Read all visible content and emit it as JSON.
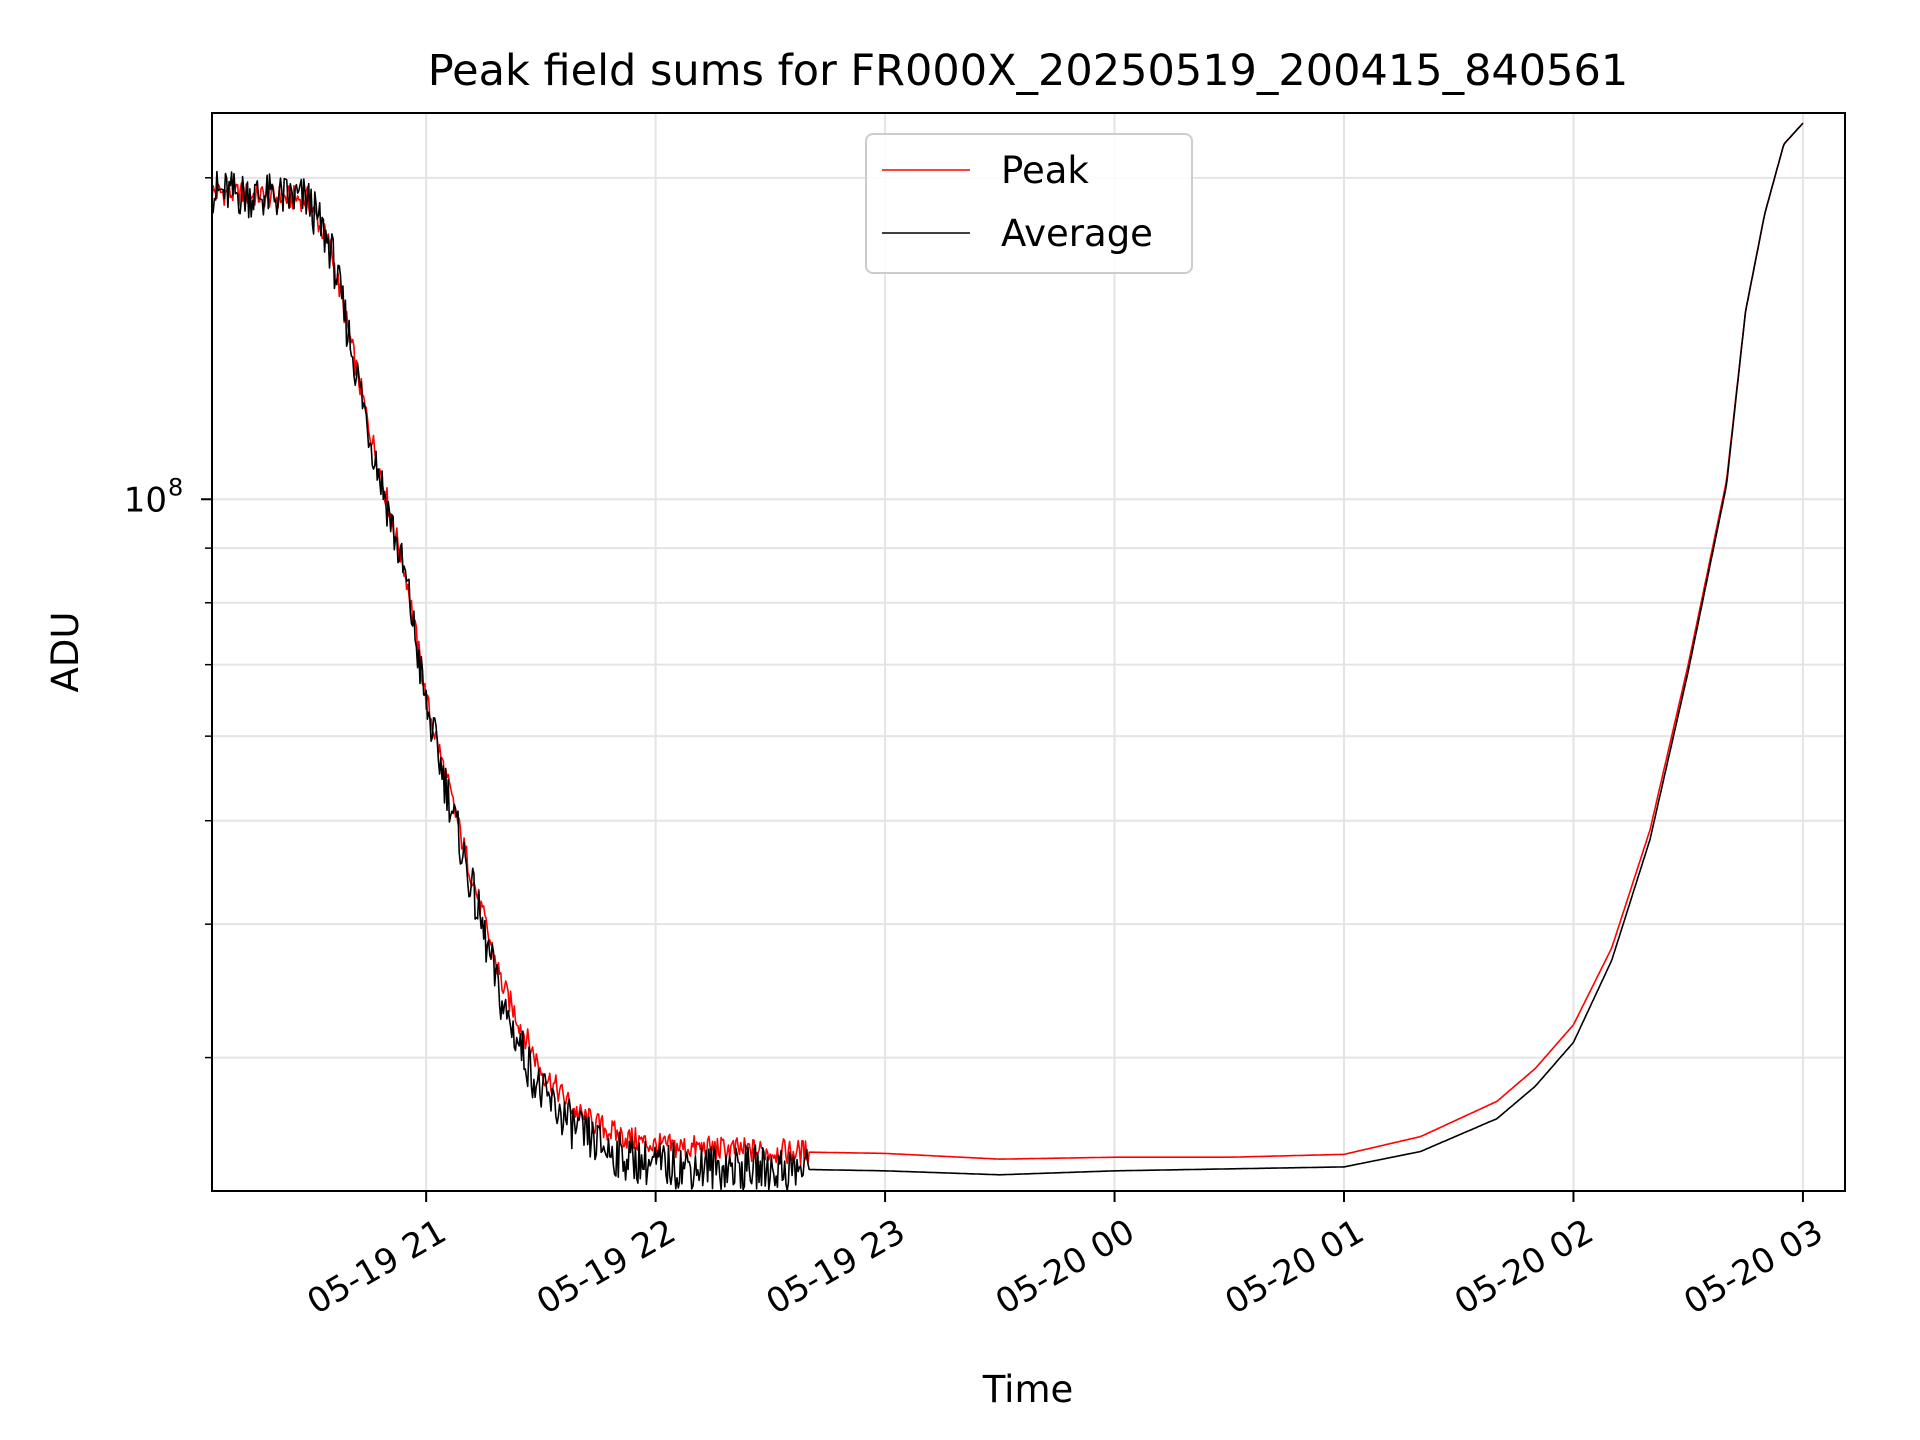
{
  "chart_data": {
    "type": "line",
    "title": "Peak field sums for FR000X_20250519_200415_840561",
    "xlabel": "Time",
    "ylabel": "ADU",
    "y_scale": "log",
    "x_unit": "time",
    "xlim": [
      "05-19 20:04",
      "05-20 03:11"
    ],
    "ylim": [
      22500000,
      230000000
    ],
    "x_ticks": [
      "05-19 21",
      "05-19 22",
      "05-19 23",
      "05-20 00",
      "05-20 01",
      "05-20 02",
      "05-20 03"
    ],
    "x_tick_times": [
      "05-19 21:00",
      "05-19 22:00",
      "05-19 23:00",
      "05-20 00:00",
      "05-20 01:00",
      "05-20 02:00",
      "05-20 03:00"
    ],
    "y_ticks": [
      {
        "label": "10",
        "sup": "8",
        "value": 100000000
      }
    ],
    "grid": true,
    "legend_position": "top-center",
    "legend": [
      {
        "label": "Peak",
        "color": "#ff0000"
      },
      {
        "label": "Average",
        "color": "#000000"
      }
    ],
    "series": [
      {
        "name": "Peak",
        "color": "#ff0000",
        "x": [
          "05-19 20:04",
          "05-19 20:20",
          "05-19 20:29",
          "05-19 20:35",
          "05-19 20:45",
          "05-19 20:55",
          "05-19 21:00",
          "05-19 21:10",
          "05-19 21:20",
          "05-19 21:30",
          "05-19 21:40",
          "05-19 21:50",
          "05-19 22:00",
          "05-19 22:30",
          "05-19 23:00",
          "05-19 23:30",
          "05-20 00:00",
          "05-20 00:30",
          "05-20 01:00",
          "05-20 01:20",
          "05-20 01:40",
          "05-20 01:50",
          "05-20 02:00",
          "05-20 02:10",
          "05-20 02:20",
          "05-20 02:30",
          "05-20 02:40",
          "05-20 02:45",
          "05-20 02:50",
          "05-20 02:55",
          "05-20 03:00"
        ],
        "y": [
          194000000,
          192000000,
          191000000,
          172000000,
          117000000,
          84000000,
          65000000,
          47000000,
          35000000,
          29200000,
          26500000,
          25400000,
          24800000,
          24500000,
          24400000,
          24100000,
          24200000,
          24200000,
          24350000,
          25300000,
          27300000,
          29300000,
          32200000,
          38000000,
          49000000,
          70000000,
          104000000,
          150000000,
          185000000,
          215000000,
          225000000
        ]
      },
      {
        "name": "Average",
        "color": "#000000",
        "x": [
          "05-19 20:04",
          "05-19 20:20",
          "05-19 20:29",
          "05-19 20:35",
          "05-19 20:45",
          "05-19 20:55",
          "05-19 21:00",
          "05-19 21:10",
          "05-19 21:20",
          "05-19 21:30",
          "05-19 21:40",
          "05-19 21:50",
          "05-19 22:00",
          "05-19 22:30",
          "05-19 23:00",
          "05-19 23:30",
          "05-20 00:00",
          "05-20 00:30",
          "05-20 01:00",
          "05-20 01:20",
          "05-20 01:40",
          "05-20 01:50",
          "05-20 02:00",
          "05-20 02:10",
          "05-20 02:20",
          "05-20 02:30",
          "05-20 02:40",
          "05-20 02:45",
          "05-20 02:50",
          "05-20 02:55",
          "05-20 03:00"
        ],
        "y": [
          194000000,
          192000000,
          191000000,
          172000000,
          116000000,
          83000000,
          64000000,
          46000000,
          33500000,
          27800000,
          25500000,
          24300000,
          23800000,
          23600000,
          23500000,
          23300000,
          23500000,
          23600000,
          23700000,
          24500000,
          26300000,
          28200000,
          31000000,
          37000000,
          48000000,
          69000000,
          103000000,
          150000000,
          185000000,
          215000000,
          225000000
        ]
      }
    ]
  }
}
